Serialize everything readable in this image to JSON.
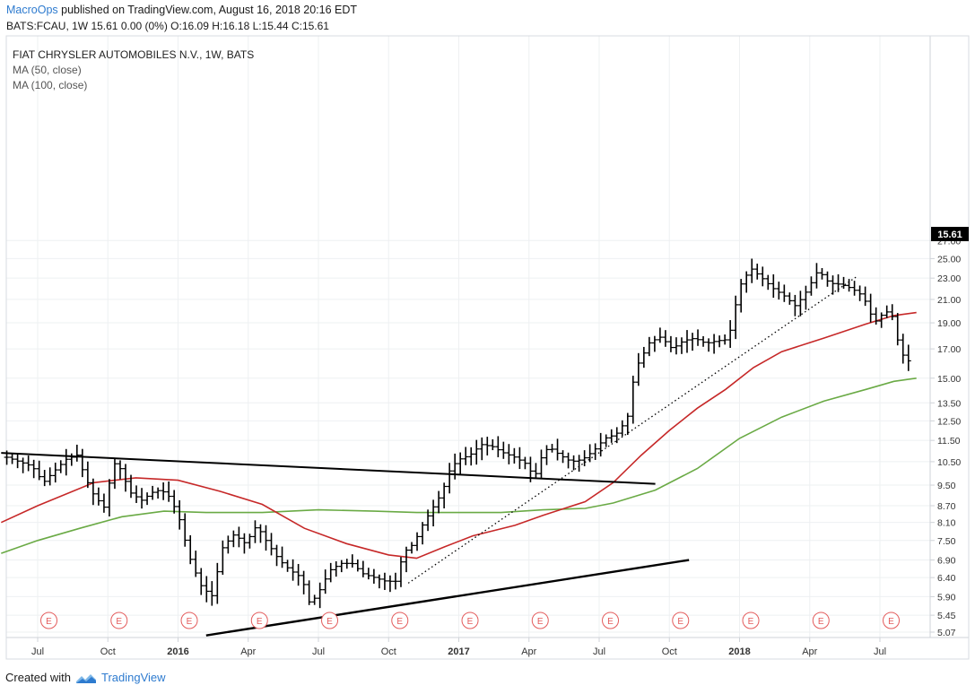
{
  "header": {
    "author": "MacroOps",
    "published_text": "published on TradingView.com, August 16, 2018 20:16 EDT",
    "symbol_line": "BATS:FCAU, 1W  15.61 0.00 (0%) O:16.09 H:16.18 L:15.44 C:15.61"
  },
  "footer": {
    "created_with": "Created with",
    "brand": "TradingView"
  },
  "colors": {
    "ma50": "#c62828",
    "ma100": "#6aaa45",
    "bars": "#000000",
    "earnings": "#e35b5b",
    "price_tag_bg": "#000000"
  },
  "chart_data": {
    "type": "ohlc-bar",
    "title": "FIAT CHRYSLER AUTOMOBILES N.V., 1W, BATS",
    "legend": [
      "MA (50, close)",
      "MA (100, close)"
    ],
    "y_scale": "log",
    "y_ticks": [
      "27.00",
      "25.00",
      "23.00",
      "21.00",
      "19.00",
      "17.00",
      "15.00",
      "13.50",
      "12.50",
      "11.50",
      "10.50",
      "9.50",
      "8.70",
      "8.10",
      "7.50",
      "6.90",
      "6.40",
      "5.90",
      "5.45",
      "5.07"
    ],
    "x_ticks": [
      {
        "label": "Jul",
        "t": 2015.5,
        "bold": false
      },
      {
        "label": "Oct",
        "t": 2015.75,
        "bold": false
      },
      {
        "label": "2016",
        "t": 2016.0,
        "bold": true
      },
      {
        "label": "Apr",
        "t": 2016.25,
        "bold": false
      },
      {
        "label": "Jul",
        "t": 2016.5,
        "bold": false
      },
      {
        "label": "Oct",
        "t": 2016.75,
        "bold": false
      },
      {
        "label": "2017",
        "t": 2017.0,
        "bold": true
      },
      {
        "label": "Apr",
        "t": 2017.25,
        "bold": false
      },
      {
        "label": "Jul",
        "t": 2017.5,
        "bold": false
      },
      {
        "label": "Oct",
        "t": 2017.75,
        "bold": false
      },
      {
        "label": "2018",
        "t": 2018.0,
        "bold": true
      },
      {
        "label": "Apr",
        "t": 2018.25,
        "bold": false
      },
      {
        "label": "Jul",
        "t": 2018.5,
        "bold": false
      }
    ],
    "last_price": "15.61",
    "close_path": [
      [
        2015.39,
        10.7
      ],
      [
        2015.48,
        10.3
      ],
      [
        2015.52,
        9.6
      ],
      [
        2015.56,
        10.1
      ],
      [
        2015.6,
        10.6
      ],
      [
        2015.64,
        10.8
      ],
      [
        2015.67,
        9.8
      ],
      [
        2015.7,
        9.1
      ],
      [
        2015.74,
        8.6
      ],
      [
        2015.76,
        9.9
      ],
      [
        2015.78,
        10.6
      ],
      [
        2015.83,
        9.2
      ],
      [
        2015.87,
        8.9
      ],
      [
        2015.92,
        9.3
      ],
      [
        2015.96,
        9.2
      ],
      [
        2016.0,
        8.4
      ],
      [
        2016.04,
        7.0
      ],
      [
        2016.08,
        6.2
      ],
      [
        2016.12,
        5.9
      ],
      [
        2016.16,
        7.3
      ],
      [
        2016.2,
        7.7
      ],
      [
        2016.24,
        7.4
      ],
      [
        2016.28,
        8.0
      ],
      [
        2016.32,
        7.4
      ],
      [
        2016.36,
        6.9
      ],
      [
        2016.4,
        6.6
      ],
      [
        2016.44,
        6.4
      ],
      [
        2016.47,
        5.7
      ],
      [
        2016.5,
        6.0
      ],
      [
        2016.54,
        6.6
      ],
      [
        2016.58,
        6.8
      ],
      [
        2016.62,
        6.8
      ],
      [
        2016.66,
        6.5
      ],
      [
        2016.7,
        6.4
      ],
      [
        2016.74,
        6.3
      ],
      [
        2016.78,
        6.3
      ],
      [
        2016.8,
        7.1
      ],
      [
        2016.84,
        7.4
      ],
      [
        2016.87,
        8.0
      ],
      [
        2016.9,
        8.5
      ],
      [
        2016.94,
        9.2
      ],
      [
        2016.97,
        10.2
      ],
      [
        2017.0,
        10.6
      ],
      [
        2017.04,
        10.8
      ],
      [
        2017.08,
        11.3
      ],
      [
        2017.12,
        11.2
      ],
      [
        2017.16,
        10.9
      ],
      [
        2017.2,
        10.7
      ],
      [
        2017.24,
        10.4
      ],
      [
        2017.27,
        9.8
      ],
      [
        2017.29,
        10.6
      ],
      [
        2017.32,
        11.2
      ],
      [
        2017.36,
        10.8
      ],
      [
        2017.4,
        10.5
      ],
      [
        2017.44,
        10.6
      ],
      [
        2017.48,
        11.0
      ],
      [
        2017.52,
        11.6
      ],
      [
        2017.56,
        11.8
      ],
      [
        2017.6,
        12.6
      ],
      [
        2017.62,
        14.7
      ],
      [
        2017.64,
        16.0
      ],
      [
        2017.68,
        17.5
      ],
      [
        2017.72,
        17.9
      ],
      [
        2017.76,
        17.0
      ],
      [
        2017.8,
        17.6
      ],
      [
        2017.84,
        17.8
      ],
      [
        2017.88,
        17.4
      ],
      [
        2017.92,
        17.6
      ],
      [
        2017.96,
        17.7
      ],
      [
        2018.0,
        22.2
      ],
      [
        2018.04,
        24.0
      ],
      [
        2018.08,
        23.0
      ],
      [
        2018.12,
        22.0
      ],
      [
        2018.16,
        21.3
      ],
      [
        2018.2,
        20.4
      ],
      [
        2018.24,
        21.8
      ],
      [
        2018.28,
        23.8
      ],
      [
        2018.32,
        22.5
      ],
      [
        2018.36,
        22.4
      ],
      [
        2018.4,
        22.0
      ],
      [
        2018.44,
        21.3
      ],
      [
        2018.48,
        19.0
      ],
      [
        2018.52,
        20.0
      ],
      [
        2018.55,
        19.4
      ],
      [
        2018.57,
        16.8
      ],
      [
        2018.6,
        16.2
      ],
      [
        2018.62,
        15.61
      ]
    ],
    "ma50": [
      [
        2015.37,
        8.1
      ],
      [
        2015.5,
        8.7
      ],
      [
        2015.7,
        9.6
      ],
      [
        2015.85,
        9.8
      ],
      [
        2016.0,
        9.7
      ],
      [
        2016.15,
        9.25
      ],
      [
        2016.3,
        8.75
      ],
      [
        2016.45,
        7.9
      ],
      [
        2016.6,
        7.4
      ],
      [
        2016.75,
        7.05
      ],
      [
        2016.85,
        6.95
      ],
      [
        2016.95,
        7.3
      ],
      [
        2017.05,
        7.65
      ],
      [
        2017.2,
        8.0
      ],
      [
        2017.3,
        8.35
      ],
      [
        2017.45,
        8.85
      ],
      [
        2017.55,
        9.6
      ],
      [
        2017.65,
        10.8
      ],
      [
        2017.75,
        12.0
      ],
      [
        2017.85,
        13.2
      ],
      [
        2017.95,
        14.3
      ],
      [
        2018.05,
        15.7
      ],
      [
        2018.15,
        16.8
      ],
      [
        2018.3,
        17.8
      ],
      [
        2018.45,
        18.9
      ],
      [
        2018.55,
        19.6
      ],
      [
        2018.63,
        19.85
      ]
    ],
    "ma100": [
      [
        2015.37,
        7.1
      ],
      [
        2015.5,
        7.5
      ],
      [
        2015.65,
        7.9
      ],
      [
        2015.8,
        8.3
      ],
      [
        2015.95,
        8.5
      ],
      [
        2016.1,
        8.45
      ],
      [
        2016.3,
        8.45
      ],
      [
        2016.5,
        8.55
      ],
      [
        2016.7,
        8.5
      ],
      [
        2016.85,
        8.45
      ],
      [
        2017.0,
        8.45
      ],
      [
        2017.15,
        8.45
      ],
      [
        2017.3,
        8.55
      ],
      [
        2017.45,
        8.6
      ],
      [
        2017.55,
        8.8
      ],
      [
        2017.7,
        9.3
      ],
      [
        2017.85,
        10.2
      ],
      [
        2018.0,
        11.6
      ],
      [
        2018.15,
        12.7
      ],
      [
        2018.3,
        13.6
      ],
      [
        2018.45,
        14.3
      ],
      [
        2018.55,
        14.8
      ],
      [
        2018.63,
        15.0
      ]
    ],
    "earnings_events": [
      2015.54,
      2015.79,
      2016.04,
      2016.29,
      2016.54,
      2016.79,
      2017.04,
      2017.29,
      2017.54,
      2017.79,
      2018.04,
      2018.29,
      2018.54
    ],
    "earnings_label": "E",
    "trendlines": [
      {
        "name": "resistance",
        "style": "solid",
        "width": 2,
        "from": [
          2015.37,
          10.9
        ],
        "to": [
          2017.7,
          9.55
        ]
      },
      {
        "name": "support",
        "style": "solid",
        "width": 2.4,
        "from": [
          2016.1,
          5.0
        ],
        "to": [
          2017.82,
          6.9
        ]
      },
      {
        "name": "uptrend",
        "style": "dotted",
        "width": 1.3,
        "from": [
          2016.82,
          6.25
        ],
        "to": [
          2018.42,
          23.2
        ]
      }
    ]
  }
}
